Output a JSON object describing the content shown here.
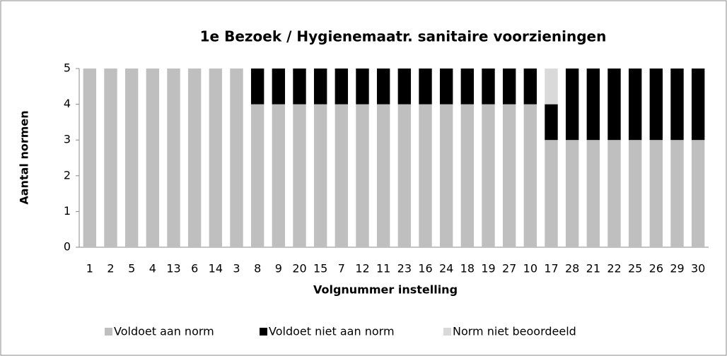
{
  "chart_data": {
    "type": "stacked_bar",
    "title": "1e Bezoek / Hygienemaatr. sanitaire voorzieningen",
    "x_label": "Volgnummer  instelling",
    "y_label": "Aantal normen",
    "categories": [
      "1",
      "2",
      "5",
      "4",
      "13",
      "6",
      "14",
      "3",
      "8",
      "9",
      "20",
      "15",
      "7",
      "12",
      "11",
      "23",
      "16",
      "24",
      "18",
      "19",
      "27",
      "10",
      "17",
      "28",
      "21",
      "22",
      "25",
      "26",
      "29",
      "30"
    ],
    "series": [
      {
        "name": "Voldoet aan norm",
        "color": "#bfbfbf",
        "values": [
          5,
          5,
          5,
          5,
          5,
          5,
          5,
          5,
          4,
          4,
          4,
          4,
          4,
          4,
          4,
          4,
          4,
          4,
          4,
          4,
          4,
          4,
          3,
          3,
          3,
          3,
          3,
          3,
          3,
          3
        ]
      },
      {
        "name": "Voldoet niet aan norm",
        "color": "#000000",
        "values": [
          0,
          0,
          0,
          0,
          0,
          0,
          0,
          0,
          1,
          1,
          1,
          1,
          1,
          1,
          1,
          1,
          1,
          1,
          1,
          1,
          1,
          1,
          1,
          2,
          2,
          2,
          2,
          2,
          2,
          2
        ]
      },
      {
        "name": "Norm niet beoordeeld",
        "color": "#d9d9d9",
        "values": [
          0,
          0,
          0,
          0,
          0,
          0,
          0,
          0,
          0,
          0,
          0,
          0,
          0,
          0,
          0,
          0,
          0,
          0,
          0,
          0,
          0,
          0,
          1,
          0,
          0,
          0,
          0,
          0,
          0,
          0
        ]
      }
    ],
    "ylim": [
      0,
      5
    ],
    "yticks": [
      0,
      1,
      2,
      3,
      4,
      5
    ],
    "legend": "bottom",
    "grid": false
  }
}
